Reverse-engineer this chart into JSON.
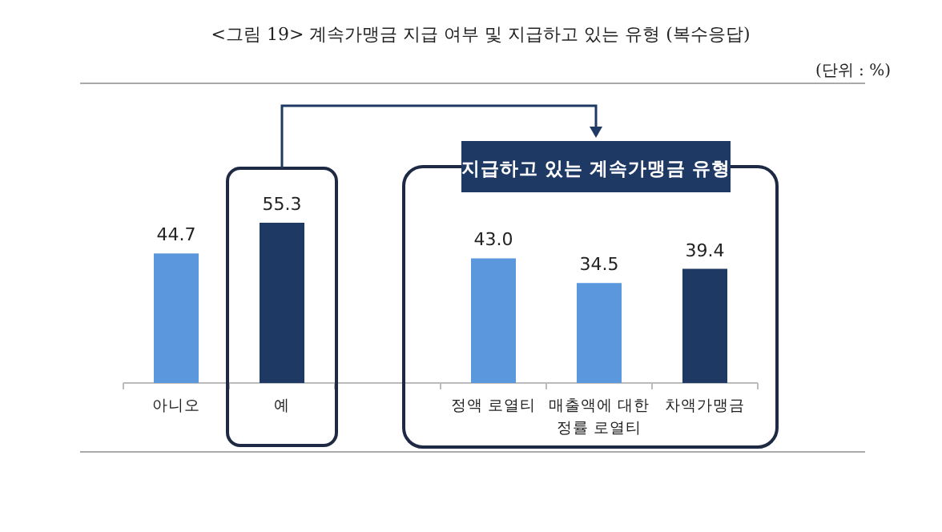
{
  "chart_data": {
    "type": "bar",
    "title": "<그림 19> 계속가맹금 지급 여부 및 지급하고 있는 유형 (복수응답)",
    "categories": [
      "아니오",
      "예",
      null,
      "정액 로열티",
      "매출액에 대한 정률 로열티",
      "차액가맹금"
    ],
    "values": [
      44.7,
      55.3,
      null,
      43.0,
      34.5,
      39.4
    ],
    "colors": [
      "#5b97dc",
      "#1e3a64",
      null,
      "#5b97dc",
      "#5b97dc",
      "#1e3a64"
    ],
    "value_labels": [
      "44.7",
      "55.3",
      null,
      "43.0",
      "34.5",
      "39.4"
    ],
    "annotations": [
      "(단위 : %)",
      "지급하고 있는 계속가맹금 유형"
    ]
  }
}
